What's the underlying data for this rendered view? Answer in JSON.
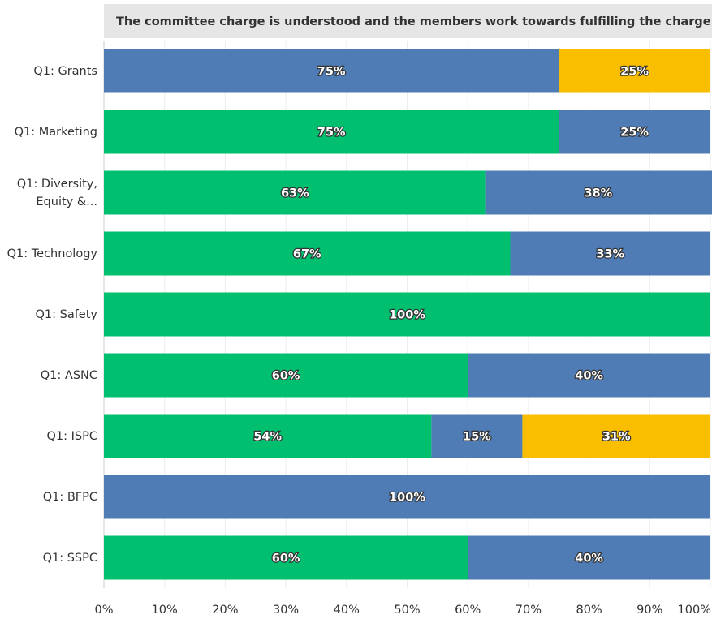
{
  "chart_data": {
    "type": "stacked-bar-horizontal",
    "title": "The committee charge is understood and the members work towards fulfilling the charge..",
    "categories": [
      "Q1: Grants",
      "Q1: Marketing",
      "Q1: Diversity, Equity &...",
      "Q1: Technology",
      "Q1: Safety",
      "Q1: ASNC",
      "Q1: ISPC",
      "Q1: BFPC",
      "Q1: SSPC"
    ],
    "series": [
      {
        "color": "#00bf6f",
        "values": [
          null,
          75,
          63,
          67,
          100,
          60,
          54,
          null,
          60
        ],
        "value_labels": [
          null,
          "75%",
          "63%",
          "67%",
          "100%",
          "60%",
          "54%",
          null,
          "60%"
        ]
      },
      {
        "color": "#507cb6",
        "values": [
          75,
          25,
          38,
          33,
          null,
          40,
          15,
          100,
          40
        ],
        "value_labels": [
          "75%",
          "25%",
          "38%",
          "33%",
          null,
          "40%",
          "15%",
          "100%",
          "40%"
        ]
      },
      {
        "color": "#f9be00",
        "values": [
          25,
          null,
          null,
          null,
          null,
          null,
          31,
          null,
          null
        ],
        "value_labels": [
          "25%",
          null,
          null,
          null,
          null,
          null,
          "31%",
          null,
          null
        ]
      }
    ],
    "xlim": [
      0,
      100
    ],
    "xticks": [
      {
        "value": 0,
        "label": "0%"
      },
      {
        "value": 10,
        "label": "10%"
      },
      {
        "value": 20,
        "label": "20%"
      },
      {
        "value": 30,
        "label": "30%"
      },
      {
        "value": 40,
        "label": "40%"
      },
      {
        "value": 50,
        "label": "50%"
      },
      {
        "value": 60,
        "label": "60%"
      },
      {
        "value": 70,
        "label": "70%"
      },
      {
        "value": 80,
        "label": "80%"
      },
      {
        "value": 90,
        "label": "90%"
      },
      {
        "value": 100,
        "label": "100%"
      }
    ],
    "grid": true
  }
}
